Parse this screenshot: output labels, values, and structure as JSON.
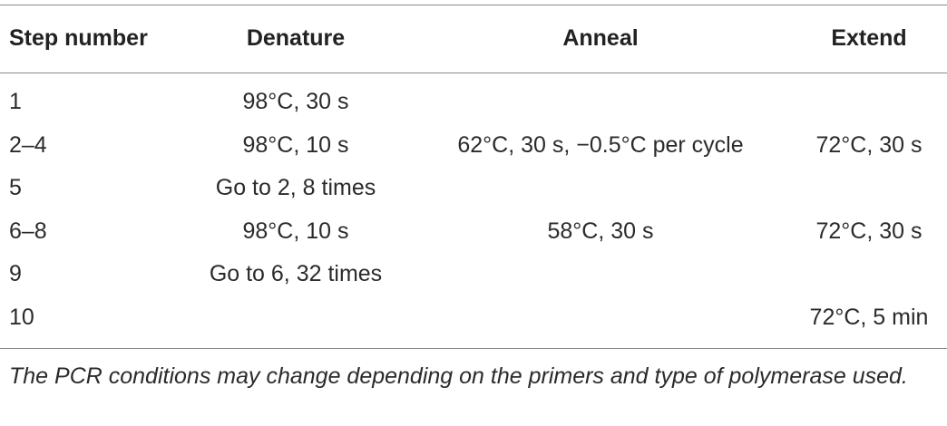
{
  "table": {
    "header": [
      "Step number",
      "Denature",
      "Anneal",
      "Extend"
    ],
    "rows": [
      [
        "1",
        "98°C, 30 s",
        null,
        null
      ],
      [
        "2–4",
        "98°C, 10 s",
        "62°C, 30 s, −0.5°C per cycle",
        "72°C, 30 s"
      ],
      [
        "5",
        "Go to 2, 8 times",
        null,
        null
      ],
      [
        "6–8",
        "98°C, 10 s",
        "58°C, 30 s",
        "72°C, 30 s"
      ],
      [
        "9",
        "Go to 6, 32 times",
        null,
        null
      ],
      [
        "10",
        null,
        null,
        "72°C, 5 min"
      ]
    ],
    "footnote": "The PCR conditions may change depending on the primers and type of polymerase used."
  }
}
